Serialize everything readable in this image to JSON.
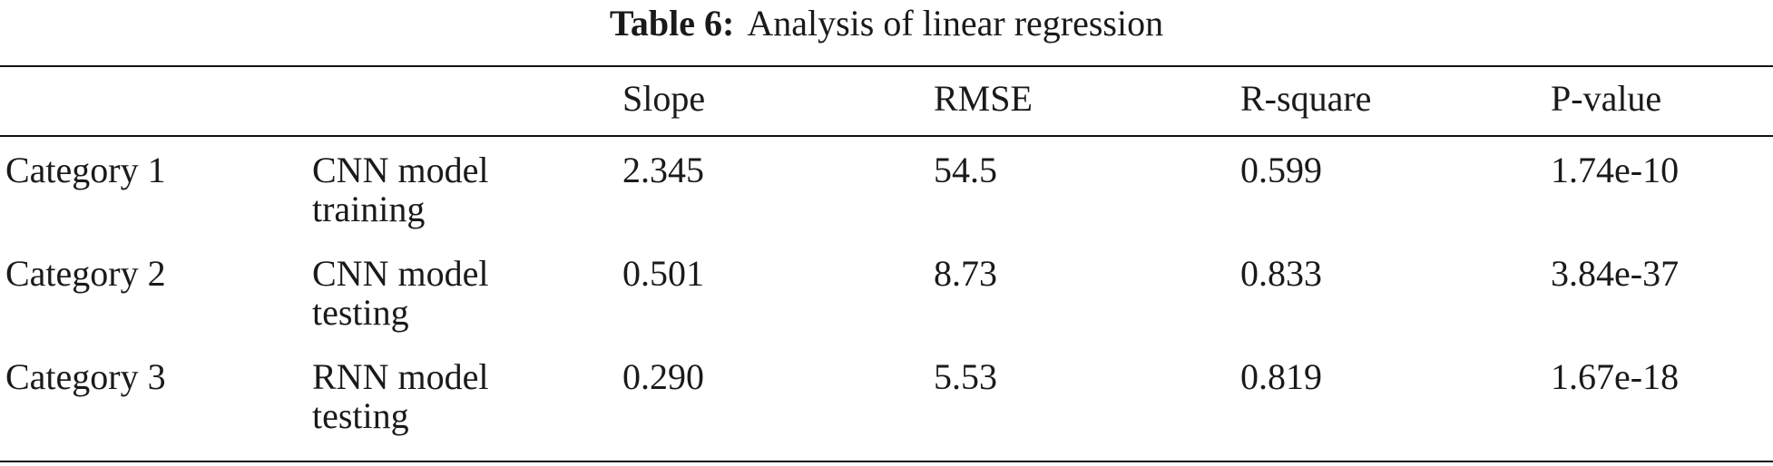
{
  "caption": {
    "label": "Table 6:",
    "text": "Analysis of linear regression"
  },
  "table": {
    "headers": [
      "",
      "",
      "Slope",
      "RMSE",
      "R-square",
      "P-value"
    ],
    "rows": [
      {
        "category": "Category 1",
        "model_line1": "CNN model",
        "model_line2": "training",
        "slope": "2.345",
        "rmse": "54.5",
        "r_square": "0.599",
        "p_value": "1.74e-10"
      },
      {
        "category": "Category 2",
        "model_line1": "CNN model",
        "model_line2": "testing",
        "slope": "0.501",
        "rmse": "8.73",
        "r_square": "0.833",
        "p_value": "3.84e-37"
      },
      {
        "category": "Category 3",
        "model_line1": "RNN model",
        "model_line2": "testing",
        "slope": "0.290",
        "rmse": "5.53",
        "r_square": "0.819",
        "p_value": "1.67e-18"
      }
    ]
  }
}
